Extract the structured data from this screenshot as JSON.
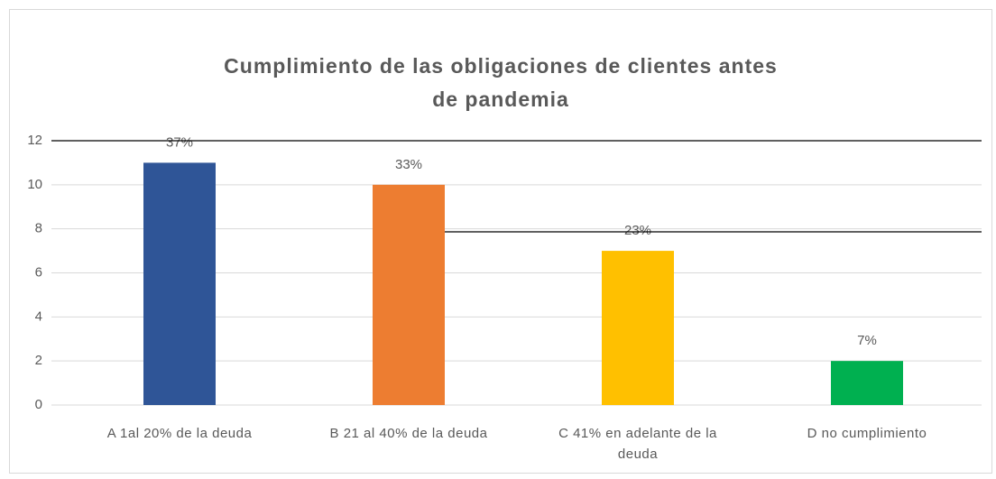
{
  "chart_data": {
    "type": "bar",
    "title": "Cumplimiento de las obligaciones de clientes antes de pandemia",
    "categories": [
      "A 1al 20% de la deuda",
      "B 21 al 40% de la deuda",
      "C 41% en adelante de la deuda",
      "D no cumplimiento"
    ],
    "values": [
      11,
      10,
      7,
      2
    ],
    "value_labels": [
      "37%",
      "33%",
      "23%",
      "7%"
    ],
    "colors": [
      "#2f5597",
      "#ed7d31",
      "#ffc000",
      "#00b050"
    ],
    "ylim": [
      0,
      12
    ],
    "yticks": [
      0,
      2,
      4,
      6,
      8,
      10,
      12
    ],
    "grid": true
  }
}
